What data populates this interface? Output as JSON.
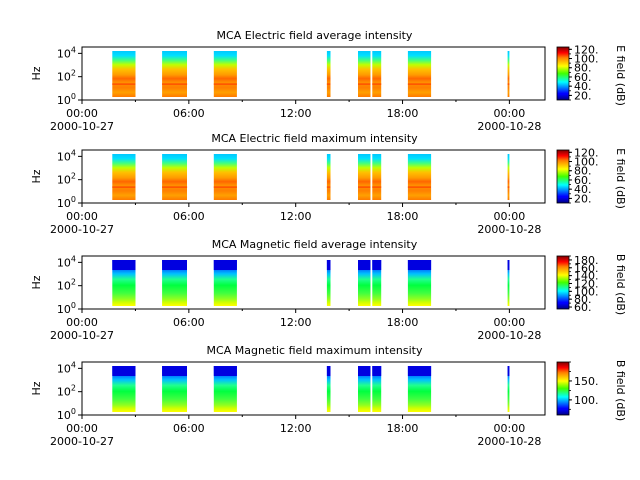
{
  "chart_data": [
    {
      "type": "heatmap",
      "title": "MCA  Electric field average intensity",
      "ylabel": "Hz",
      "y_scale": "log",
      "y_ticks": [
        "10^0",
        "10^2",
        "10^4"
      ],
      "x_ticks": [
        "00:00",
        "06:00",
        "12:00",
        "18:00",
        "00:00"
      ],
      "x_dates": [
        "2000-10-27",
        "2000-10-28"
      ],
      "colorbar_label": "E field (dB)",
      "colorbar_ticks": [
        "20.",
        "40.",
        "60.",
        "80.",
        "100.",
        "120."
      ],
      "colorbar_range": [
        10,
        125
      ],
      "colormap": "jet",
      "data_windows_hours": [
        [
          1.7,
          3.0
        ],
        [
          4.5,
          5.9
        ],
        [
          7.4,
          8.7
        ],
        [
          13.75,
          13.95
        ],
        [
          15.5,
          16.2
        ],
        [
          16.3,
          16.8
        ],
        [
          18.3,
          19.6
        ],
        [
          23.9,
          24.0
        ]
      ],
      "profile": "electric"
    },
    {
      "type": "heatmap",
      "title": "MCA  Electric field maximum intensity",
      "ylabel": "Hz",
      "y_scale": "log",
      "y_ticks": [
        "10^0",
        "10^2",
        "10^4"
      ],
      "x_ticks": [
        "00:00",
        "06:00",
        "12:00",
        "18:00",
        "00:00"
      ],
      "x_dates": [
        "2000-10-27",
        "2000-10-28"
      ],
      "colorbar_label": "E field (dB)",
      "colorbar_ticks": [
        "20.",
        "40.",
        "60.",
        "80.",
        "100.",
        "120."
      ],
      "colorbar_range": [
        10,
        125
      ],
      "colormap": "jet",
      "data_windows_hours": [
        [
          1.7,
          3.0
        ],
        [
          4.5,
          5.9
        ],
        [
          7.4,
          8.7
        ],
        [
          13.75,
          13.95
        ],
        [
          15.5,
          16.2
        ],
        [
          16.3,
          16.8
        ],
        [
          18.3,
          19.6
        ],
        [
          23.9,
          24.0
        ]
      ],
      "profile": "electric"
    },
    {
      "type": "heatmap",
      "title": "MCA  Magnetic field average intensity",
      "ylabel": "Hz",
      "y_scale": "log",
      "y_ticks": [
        "10^0",
        "10^2",
        "10^4"
      ],
      "x_ticks": [
        "00:00",
        "06:00",
        "12:00",
        "18:00",
        "00:00"
      ],
      "x_dates": [
        "2000-10-27",
        "2000-10-28"
      ],
      "colorbar_label": "B field (dB)",
      "colorbar_ticks": [
        "60.",
        "80.",
        "100.",
        "120.",
        "140.",
        "160.",
        "180."
      ],
      "colorbar_range": [
        55,
        190
      ],
      "colormap": "jet",
      "data_windows_hours": [
        [
          1.7,
          3.0
        ],
        [
          4.5,
          5.9
        ],
        [
          7.4,
          8.7
        ],
        [
          13.75,
          13.95
        ],
        [
          15.5,
          16.2
        ],
        [
          16.3,
          16.8
        ],
        [
          18.3,
          19.6
        ],
        [
          23.9,
          24.0
        ]
      ],
      "profile": "magnetic"
    },
    {
      "type": "heatmap",
      "title": "MCA  Magnetic field maximum intensity",
      "ylabel": "Hz",
      "y_scale": "log",
      "y_ticks": [
        "10^0",
        "10^2",
        "10^4"
      ],
      "x_ticks": [
        "00:00",
        "06:00",
        "12:00",
        "18:00",
        "00:00"
      ],
      "x_dates": [
        "2000-10-27",
        "2000-10-28"
      ],
      "colorbar_label": "B field (dB)",
      "colorbar_ticks": [
        "100.",
        "150."
      ],
      "colorbar_range": [
        60,
        200
      ],
      "colormap": "jet",
      "data_windows_hours": [
        [
          1.7,
          3.0
        ],
        [
          4.5,
          5.9
        ],
        [
          7.4,
          8.7
        ],
        [
          13.75,
          13.95
        ],
        [
          15.5,
          16.2
        ],
        [
          16.3,
          16.8
        ],
        [
          18.3,
          19.6
        ],
        [
          23.9,
          24.0
        ]
      ],
      "profile": "magnetic"
    }
  ]
}
